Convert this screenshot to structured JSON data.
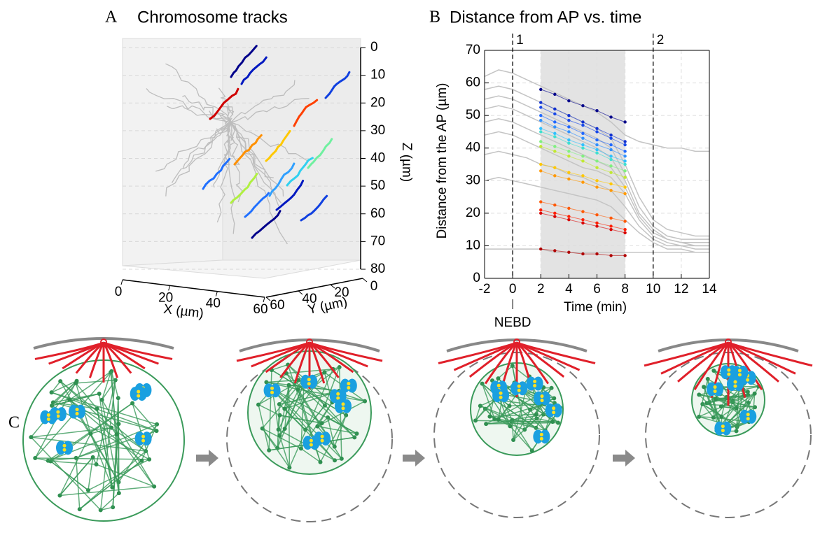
{
  "panels": [
    "A",
    "B",
    "C"
  ],
  "chart_data": [
    {
      "type": "scatter3d",
      "title": "Chromosome tracks",
      "xlabel": "X (µm)",
      "ylabel": "Y (µm)",
      "zlabel": "Z (µm)",
      "xlim": [
        0,
        60
      ],
      "ylim": [
        0,
        60
      ],
      "zlim": [
        0,
        80
      ],
      "xticks": [
        0,
        20,
        40,
        60
      ],
      "yticks": [
        0,
        20,
        40,
        60
      ],
      "zticks": [
        0,
        10,
        20,
        30,
        40,
        50,
        60,
        70,
        80
      ]
    },
    {
      "type": "line",
      "title": "Distance from AP vs. time",
      "xlabel": "Time (min)",
      "ylabel": "Distance from the AP (µm)",
      "xlim": [
        -2,
        14
      ],
      "ylim": [
        0,
        70
      ],
      "xticks": [
        -2,
        0,
        2,
        4,
        6,
        8,
        10,
        12,
        14
      ],
      "yticks": [
        0,
        10,
        20,
        30,
        40,
        50,
        60,
        70
      ],
      "grid": true,
      "shade": [
        2,
        8
      ],
      "vlines": [
        {
          "value": 0,
          "label": "1"
        },
        {
          "value": 10,
          "label": "2"
        }
      ],
      "annotation": {
        "value": 0,
        "label": "NEBD"
      },
      "series": [
        {
          "color": "#c4c4c4",
          "x": [
            -2,
            -1,
            0,
            1,
            2,
            3,
            4,
            5,
            6,
            7,
            8,
            9,
            10,
            11,
            12,
            13,
            14
          ],
          "values": [
            62,
            64,
            63,
            61,
            59,
            57,
            55,
            53,
            51,
            48,
            44,
            42,
            41,
            40,
            40,
            39,
            39
          ]
        },
        {
          "color": "#c4c4c4",
          "x": [
            -2,
            -1,
            0,
            1,
            2,
            3,
            4,
            5,
            6,
            7,
            8,
            9,
            10,
            11,
            12,
            13,
            14
          ],
          "values": [
            58,
            59,
            58,
            56,
            54,
            52,
            50,
            48,
            46,
            43,
            35,
            25,
            18,
            15,
            14,
            13,
            13
          ]
        },
        {
          "color": "#c4c4c4",
          "x": [
            -2,
            -1,
            0,
            1,
            2,
            3,
            4,
            5,
            6,
            7,
            8,
            9,
            10,
            11,
            12,
            13,
            14
          ],
          "values": [
            55,
            56,
            55,
            53,
            51,
            49,
            47,
            45,
            43,
            40,
            32,
            22,
            16,
            13,
            12,
            12,
            12
          ]
        },
        {
          "color": "#c4c4c4",
          "x": [
            -2,
            -1,
            0,
            1,
            2,
            3,
            4,
            5,
            6,
            7,
            8,
            9,
            10,
            11,
            12,
            13,
            14
          ],
          "values": [
            52,
            53,
            52,
            50,
            48,
            46,
            44,
            42,
            40,
            37,
            30,
            20,
            15,
            12,
            11,
            11,
            11
          ]
        },
        {
          "color": "#c4c4c4",
          "x": [
            -2,
            -1,
            0,
            1,
            2,
            3,
            4,
            5,
            6,
            7,
            8,
            9,
            10,
            11,
            12,
            13,
            14
          ],
          "values": [
            48,
            49,
            48,
            46,
            44,
            42,
            40,
            38,
            36,
            34,
            28,
            19,
            14,
            12,
            11,
            10,
            10
          ]
        },
        {
          "color": "#c4c4c4",
          "x": [
            -2,
            -1,
            0,
            1,
            2,
            3,
            4,
            5,
            6,
            7,
            8,
            9,
            10,
            11,
            12,
            13,
            14
          ],
          "values": [
            44,
            45,
            44,
            42,
            40,
            38,
            36,
            34,
            33,
            31,
            26,
            18,
            13,
            11,
            10,
            10,
            10
          ]
        },
        {
          "color": "#c4c4c4",
          "x": [
            -2,
            -1,
            0,
            1,
            2,
            3,
            4,
            5,
            6,
            7,
            8,
            9,
            10,
            11,
            12,
            13,
            14
          ],
          "values": [
            38,
            39,
            38,
            37,
            35,
            34,
            32,
            31,
            29,
            27,
            22,
            16,
            12,
            10,
            10,
            9,
            9
          ]
        },
        {
          "color": "#c4c4c4",
          "x": [
            -2,
            -1,
            0,
            1,
            2,
            3,
            4,
            5,
            6,
            7,
            8,
            9,
            10,
            11,
            12,
            13,
            14
          ],
          "values": [
            30,
            31,
            30,
            29,
            28,
            27,
            26,
            25,
            24,
            22,
            18,
            14,
            11,
            9,
            9,
            8,
            8
          ]
        },
        {
          "color": "#c4c4c4",
          "x": [
            -2,
            -1,
            0,
            1,
            2,
            3,
            4,
            5,
            6,
            7,
            8,
            9,
            10,
            11,
            12,
            13,
            14
          ],
          "values": [
            9,
            9,
            9,
            9,
            9,
            8,
            8,
            8,
            8,
            8,
            8,
            8,
            8,
            8,
            8,
            8,
            8
          ]
        },
        {
          "color": "#00008b",
          "x": [
            2,
            3,
            4,
            5,
            6,
            7,
            8
          ],
          "values": [
            58,
            56.5,
            54.5,
            53,
            51.5,
            49.5,
            48
          ]
        },
        {
          "color": "#1030d0",
          "x": [
            2,
            3,
            4,
            5,
            6,
            7,
            8
          ],
          "values": [
            54,
            52,
            50,
            48,
            46,
            44,
            42
          ]
        },
        {
          "color": "#1848e8",
          "x": [
            2,
            3,
            4,
            5,
            6,
            7,
            8
          ],
          "values": [
            52.5,
            50.5,
            48.5,
            47,
            45,
            43,
            41
          ]
        },
        {
          "color": "#2068ff",
          "x": [
            2,
            3,
            4,
            5,
            6,
            7,
            8
          ],
          "values": [
            50,
            48,
            46.5,
            44.5,
            42.5,
            41,
            39
          ]
        },
        {
          "color": "#3090ff",
          "x": [
            2,
            3,
            4,
            5,
            6,
            7,
            8
          ],
          "values": [
            48.5,
            46.5,
            45,
            43,
            41,
            39.5,
            37.5
          ]
        },
        {
          "color": "#30c0ff",
          "x": [
            2,
            3,
            4,
            5,
            6,
            7,
            8
          ],
          "values": [
            46,
            44.5,
            42.5,
            41,
            39.5,
            37.5,
            36
          ]
        },
        {
          "color": "#40e0d0",
          "x": [
            2,
            3,
            4,
            5,
            6,
            7,
            8
          ],
          "values": [
            45,
            43.5,
            41.5,
            40,
            38.5,
            36.5,
            35
          ]
        },
        {
          "color": "#80f080",
          "x": [
            2,
            3,
            4,
            5,
            6,
            7,
            8
          ],
          "values": [
            42,
            40.5,
            39,
            37.5,
            36,
            34.5,
            33
          ]
        },
        {
          "color": "#c0e830",
          "x": [
            2,
            3,
            4,
            5,
            6,
            7,
            8
          ],
          "values": [
            40.5,
            39,
            37.5,
            36,
            34,
            32.5,
            31
          ]
        },
        {
          "color": "#ffc800",
          "x": [
            2,
            3,
            4,
            5,
            6,
            7,
            8
          ],
          "values": [
            35,
            34,
            32.5,
            31.5,
            30,
            29,
            28
          ]
        },
        {
          "color": "#ff9800",
          "x": [
            2,
            3,
            4,
            5,
            6,
            7,
            8
          ],
          "values": [
            33,
            31.5,
            30.5,
            29.5,
            28,
            27,
            26
          ]
        },
        {
          "color": "#ff5800",
          "x": [
            2,
            3,
            4,
            5,
            6,
            7,
            8
          ],
          "values": [
            23.5,
            22.5,
            21.5,
            20.5,
            19.5,
            18.5,
            17.5
          ]
        },
        {
          "color": "#ff2000",
          "x": [
            2,
            3,
            4,
            5,
            6,
            7,
            8
          ],
          "values": [
            21,
            20,
            19,
            18,
            17,
            16,
            15
          ]
        },
        {
          "color": "#d80000",
          "x": [
            2,
            3,
            4,
            5,
            6,
            7,
            8
          ],
          "values": [
            20,
            19,
            18,
            17,
            16,
            15,
            14
          ]
        },
        {
          "color": "#b00000",
          "x": [
            2,
            3,
            4,
            5,
            6,
            7,
            8
          ],
          "values": [
            9,
            8.5,
            8,
            7.5,
            7.5,
            7,
            7
          ]
        }
      ]
    }
  ]
}
